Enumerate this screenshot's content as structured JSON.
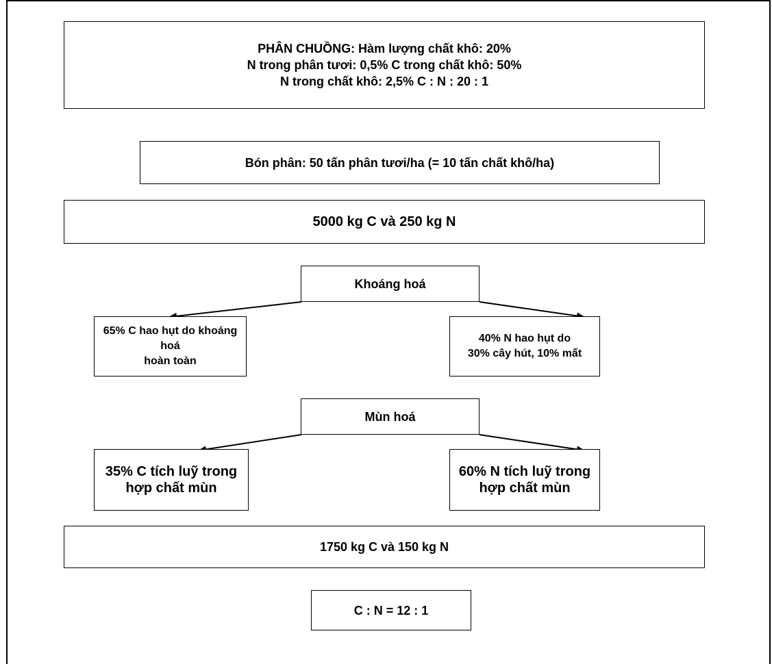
{
  "header_box": {
    "line1": "PHÂN CHUỒNG: Hàm lượng chất khô: 20%",
    "line2": "N trong phân tươi: 0,5% C trong chất khô: 50%",
    "line3": "N trong chất khô: 2,5% C : N : 20 : 1"
  },
  "fertilizer_box": "Bón phân: 50 tấn phân tươi/ha (= 10 tấn chất khô/ha)",
  "initial_totals_box": "5000 kg C và 250 kg N",
  "mineralization": {
    "label": "Khoáng hoá",
    "left": {
      "line1": "65% C hao hụt do khoáng hoá",
      "line2": "hoàn toàn"
    },
    "right": {
      "line1": "40% N hao hụt do",
      "line2": "30% cây hút, 10% mất"
    }
  },
  "humification": {
    "label": "Mùn hoá",
    "left": {
      "line1": "35% C tích luỹ trong",
      "line2": "hợp chất mùn"
    },
    "right": {
      "line1": "60% N tích luỹ trong",
      "line2": "hợp chất mùn"
    }
  },
  "final_totals_box": "1750 kg C và 150 kg N",
  "ratio_box": "C : N = 12 : 1"
}
